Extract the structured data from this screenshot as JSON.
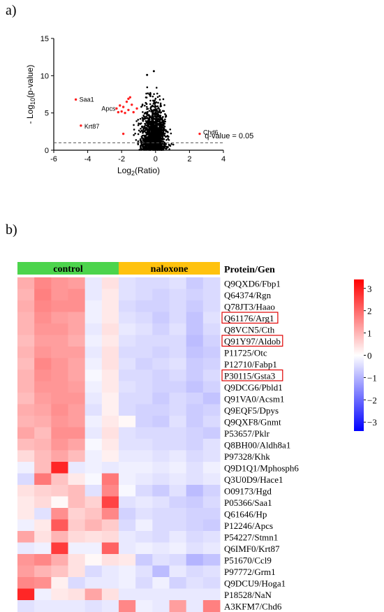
{
  "panels": {
    "a": "a)",
    "b": "b)"
  },
  "chart_data": [
    {
      "type": "scatter",
      "name": "volcano",
      "xlabel_main": "Log",
      "xlabel_sub": "2",
      "xlabel_tail": "(Ratio)",
      "ylabel_pre": "- Log",
      "ylabel_sub": "10",
      "ylabel_tail": "(p-value)",
      "xlim": [
        -6,
        4
      ],
      "ylim": [
        0,
        15
      ],
      "xticks": [
        -6,
        -4,
        -2,
        0,
        2,
        4
      ],
      "yticks": [
        0,
        5,
        10,
        15
      ],
      "threshold": {
        "y": 1.0,
        "label": "q-value = 0.05"
      },
      "colors": {
        "significant": "#ff2020",
        "other": "#000000",
        "threshold": "#555555"
      },
      "significant_points": [
        [
          -4.7,
          6.8
        ],
        [
          -4.4,
          3.3
        ],
        [
          -2.3,
          5.6
        ],
        [
          -2.1,
          6.0
        ],
        [
          -2.0,
          5.2
        ],
        [
          -1.9,
          5.8
        ],
        [
          -1.8,
          5.0
        ],
        [
          -1.7,
          6.5
        ],
        [
          -1.6,
          5.4
        ],
        [
          -1.5,
          7.1
        ],
        [
          -1.4,
          6.1
        ],
        [
          -1.3,
          5.1
        ],
        [
          -1.6,
          6.9
        ],
        [
          -1.9,
          2.2
        ],
        [
          -2.2,
          5.1
        ],
        [
          2.6,
          2.2
        ],
        [
          -1.1,
          5.6
        ]
      ],
      "labeled_points": [
        {
          "label": "Saa1",
          "x": -4.7,
          "y": 6.8
        },
        {
          "label": "Krt87",
          "x": -4.4,
          "y": 3.3
        },
        {
          "label": "Apcs",
          "x": -2.2,
          "y": 5.1
        },
        {
          "label": "Chd6",
          "x": 2.6,
          "y": 2.2
        }
      ],
      "highlight_black": [
        [
          -0.5,
          10.1
        ],
        [
          -0.1,
          10.6
        ]
      ]
    },
    {
      "type": "heatmap",
      "name": "heatmap",
      "groups": [
        {
          "label": "control",
          "color": "#4cd44c",
          "columns": 6
        },
        {
          "label": "naloxone",
          "color": "#ffc20e",
          "columns": 6
        }
      ],
      "row_header": "Protein/Gen",
      "rows": [
        "Q9QXD6/Fbp1",
        "Q64374/Rgn",
        "Q78JT3/Haao",
        "Q61176/Arg1",
        "Q8VCN5/Cth",
        "Q91Y97/Aldob",
        "P11725/Otc",
        "P12710/Fabp1",
        "P30115/Gsta3",
        "Q9DCG6/Pbld1",
        "Q91VA0/Acsm1",
        "Q9EQF5/Dpys",
        "Q9QXF8/Gnmt",
        "P53657/Pklr",
        "Q8BH00/Aldh8a1",
        "P97328/Khk",
        "Q9D1Q1/Mphosph6",
        "Q3U0D9/Hace1",
        "O09173/Hgd",
        "P05366/Saa1",
        "Q61646/Hp",
        "P12246/Apcs",
        "P54227/Stmn1",
        "Q6IMF0/Krt87",
        "P51670/Ccl9",
        "P97772/Grm1",
        "Q9DCU9/Hoga1",
        "P18528/NaN",
        "A3KFM7/Chd6"
      ],
      "boxed_rows": [
        "Q61176/Arg1",
        "Q91Y97/Aldob",
        "P30115/Gsta3"
      ],
      "colorbar": {
        "min": -3.4,
        "max": 3.4,
        "ticks": [
          3,
          2,
          1,
          0,
          -1,
          -2,
          -3
        ],
        "colors": {
          "high": "#ff0000",
          "mid": "#ffffff",
          "low": "#0000ff"
        }
      },
      "values": [
        [
          1.1,
          1.6,
          1.4,
          1.3,
          -0.3,
          0.4,
          -0.4,
          -0.5,
          -0.5,
          -0.4,
          -0.7,
          -0.5
        ],
        [
          1.0,
          1.7,
          1.4,
          1.5,
          -0.3,
          0.3,
          -0.4,
          -0.5,
          -0.6,
          -0.5,
          -0.6,
          -0.5
        ],
        [
          1.1,
          1.6,
          1.5,
          1.5,
          -0.2,
          0.3,
          -0.5,
          -0.6,
          -0.6,
          -0.5,
          -0.7,
          -0.5
        ],
        [
          1.0,
          1.5,
          1.3,
          1.2,
          -0.2,
          0.3,
          -0.4,
          -0.5,
          -0.7,
          -0.5,
          -0.8,
          -0.4
        ],
        [
          1.0,
          1.4,
          1.4,
          1.2,
          -0.3,
          0.4,
          -0.3,
          -0.4,
          -0.6,
          -0.4,
          -0.8,
          -0.5
        ],
        [
          0.9,
          1.3,
          1.3,
          1.1,
          -0.2,
          0.3,
          -0.4,
          -0.5,
          -0.5,
          -0.5,
          -0.9,
          -0.6
        ],
        [
          1.0,
          1.4,
          1.3,
          1.3,
          -0.3,
          0.4,
          -0.5,
          -0.5,
          -0.6,
          -0.5,
          -0.8,
          -0.7
        ],
        [
          0.9,
          1.6,
          1.4,
          1.2,
          -0.2,
          0.4,
          -0.4,
          -0.6,
          -0.5,
          -0.4,
          -0.7,
          -0.6
        ],
        [
          1.0,
          1.5,
          1.4,
          1.2,
          -0.1,
          0.3,
          -0.5,
          -0.5,
          -0.6,
          -0.5,
          -0.7,
          -0.5
        ],
        [
          1.0,
          1.4,
          1.4,
          1.3,
          -0.2,
          0.3,
          -0.4,
          -0.5,
          -0.6,
          -0.6,
          -0.8,
          -0.6
        ],
        [
          0.9,
          1.3,
          1.4,
          1.4,
          -0.3,
          0.2,
          -0.5,
          -0.5,
          -0.7,
          -0.5,
          -0.6,
          -0.8
        ],
        [
          1.1,
          1.2,
          1.5,
          1.3,
          -0.4,
          0.2,
          -0.5,
          -0.6,
          -0.6,
          -0.5,
          -0.7,
          -0.6
        ],
        [
          1.0,
          1.1,
          1.4,
          1.3,
          -0.2,
          0.3,
          0.1,
          -0.6,
          -0.7,
          -0.4,
          -0.7,
          -0.5
        ],
        [
          1.2,
          0.9,
          1.5,
          1.5,
          -0.3,
          0.4,
          -0.4,
          -0.5,
          -0.5,
          -0.5,
          -0.6,
          -0.7
        ],
        [
          0.9,
          1.0,
          1.4,
          1.2,
          -0.1,
          0.3,
          -0.4,
          -0.4,
          -0.5,
          -0.5,
          -0.6,
          -0.4
        ],
        [
          0.5,
          0.9,
          1.2,
          0.9,
          -0.2,
          0.2,
          -0.3,
          -0.3,
          -0.4,
          -0.3,
          -0.5,
          -0.4
        ],
        [
          -0.2,
          0.9,
          2.9,
          -0.3,
          -0.2,
          -0.3,
          -0.2,
          -0.2,
          -0.3,
          -0.2,
          -0.4,
          -0.2
        ],
        [
          -0.5,
          1.8,
          0.8,
          0.3,
          -0.1,
          1.8,
          -0.2,
          -0.3,
          -0.4,
          -0.3,
          -0.4,
          -0.3
        ],
        [
          0.4,
          0.6,
          0.7,
          0.9,
          -0.4,
          1.6,
          -0.1,
          -0.5,
          -0.7,
          -0.4,
          -0.9,
          -0.6
        ],
        [
          0.3,
          0.5,
          0.1,
          0.9,
          0.6,
          2.5,
          -0.4,
          -0.3,
          -0.4,
          -0.6,
          -0.7,
          -0.5
        ],
        [
          0.3,
          -0.4,
          1.5,
          0.6,
          0.8,
          1.6,
          -0.6,
          -0.4,
          -0.5,
          -0.5,
          -0.6,
          -0.6
        ],
        [
          -0.2,
          0.3,
          2.2,
          0.7,
          1.0,
          0.7,
          -0.5,
          -0.2,
          -0.5,
          -0.5,
          -0.6,
          -0.7
        ],
        [
          1.2,
          0.4,
          1.0,
          0.5,
          0.4,
          0.5,
          -0.3,
          -0.4,
          -0.5,
          -0.3,
          -0.5,
          -0.4
        ],
        [
          -0.3,
          -0.2,
          2.6,
          -0.2,
          -0.2,
          2.1,
          -0.3,
          -0.2,
          -0.3,
          -0.2,
          -0.4,
          -0.3
        ],
        [
          1.4,
          1.6,
          1.1,
          0.4,
          0.1,
          0.4,
          0.3,
          -0.7,
          -0.4,
          -0.5,
          -1.0,
          -0.8
        ],
        [
          1.3,
          1.0,
          0.8,
          0.4,
          -0.5,
          -0.3,
          -0.2,
          -0.4,
          -0.9,
          -0.3,
          -0.5,
          -0.4
        ],
        [
          1.6,
          1.5,
          0.2,
          -0.5,
          -0.3,
          -0.3,
          -0.2,
          -0.5,
          -0.2,
          -0.6,
          -0.4,
          -0.5
        ],
        [
          2.9,
          -0.2,
          0.3,
          0.4,
          1.2,
          0.4,
          -0.3,
          -0.3,
          -0.3,
          -0.3,
          -0.3,
          -0.3
        ],
        [
          -0.4,
          -0.3,
          -0.3,
          -0.3,
          -0.4,
          -0.3,
          1.6,
          -0.2,
          -0.3,
          1.3,
          -0.3,
          1.7
        ]
      ]
    }
  ]
}
